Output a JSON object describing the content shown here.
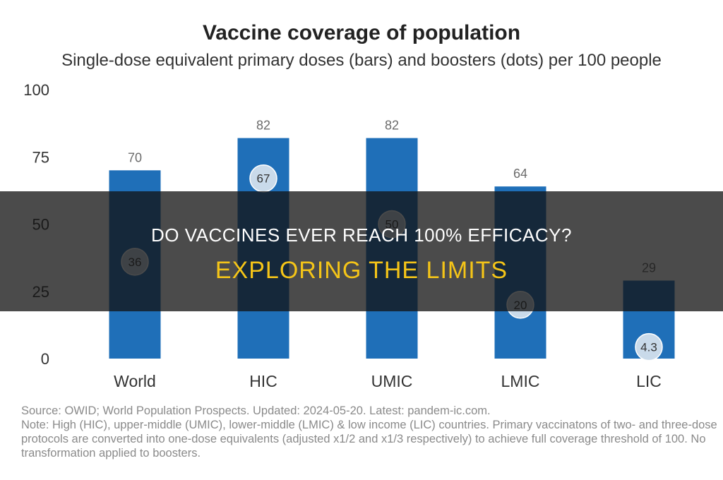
{
  "chart_data": {
    "type": "bar",
    "title": "Vaccine coverage of population",
    "subtitle": "Single-dose equivalent primary doses (bars) and boosters (dots) per 100 people",
    "categories": [
      "World",
      "HIC",
      "UMIC",
      "LMIC",
      "LIC"
    ],
    "series": [
      {
        "name": "primary doses",
        "type": "bar",
        "values": [
          70,
          82,
          82,
          64,
          29
        ]
      },
      {
        "name": "boosters",
        "type": "dot",
        "values": [
          36,
          67,
          50,
          20,
          4.3
        ]
      }
    ],
    "ylim": [
      0,
      100
    ],
    "yticks": [
      0,
      25,
      50,
      75,
      100
    ],
    "grid": false,
    "colors": {
      "bar": "#1f6fb8",
      "dot": "#c9daea",
      "tick_text": "#333333",
      "value_text": "#6b6b6b"
    }
  },
  "footnote": {
    "source": "Source: OWID; World Population Prospects. Updated: 2024-05-20. Latest: pandem-ic.com.",
    "note": "Note: High (HIC), upper-middle (UMIC), lower-middle (LMIC) & low income (LIC) countries. Primary vaccinatons of two- and three-dose protocols are converted into one-dose equivalents (adjusted x1/2 and x1/3 respectively) to achieve full coverage threshold of 100. No transformation applied to boosters."
  },
  "overlay": {
    "title": "DO VACCINES EVER REACH 100% EFFICACY?",
    "subtitle": "EXPLORING THE LIMITS"
  }
}
